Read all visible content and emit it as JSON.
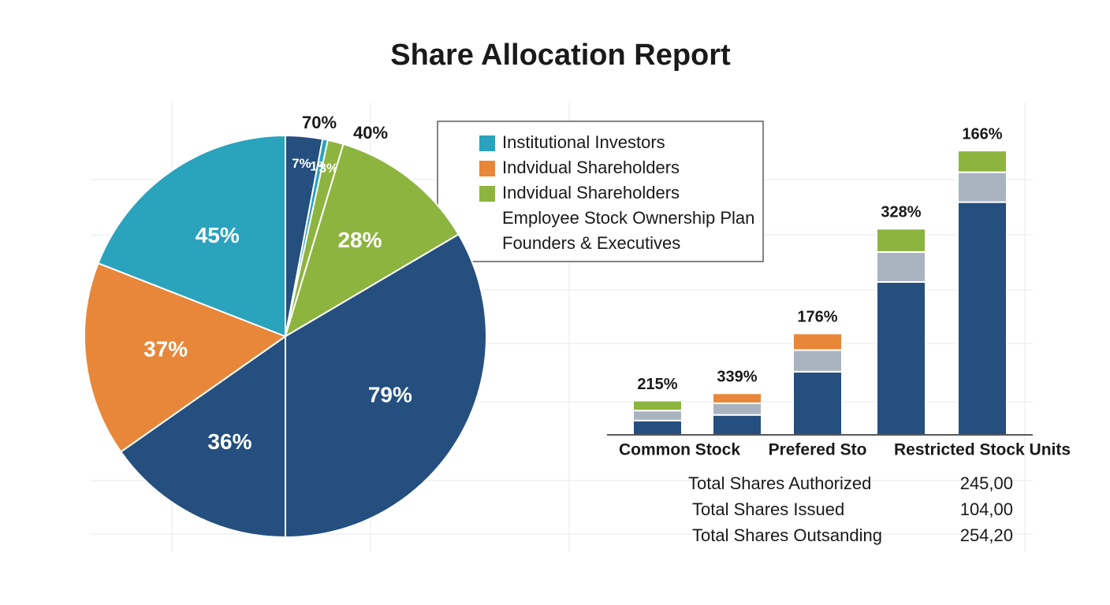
{
  "title": "Share Allocation Report",
  "chart_data": [
    {
      "type": "pie",
      "values": [
        7,
        1,
        3,
        28,
        79,
        36,
        37,
        45
      ],
      "value_labels": [
        "7%",
        "1%",
        "3%",
        "28%",
        "79%",
        "36%",
        "37%",
        "45%"
      ],
      "colors": [
        "#244f7f",
        "#2aa3bd",
        "#8db43f",
        "#8db43f",
        "#244f7f",
        "#244f7f",
        "#e8873a",
        "#2aa3bd"
      ],
      "annotations": [
        "70%",
        "40%"
      ]
    },
    {
      "type": "stacked_bar",
      "categories": [
        "Common Stock",
        null,
        "Prefered Sto",
        null,
        "Restricted Stock Units"
      ],
      "ylim": [
        0,
        100
      ],
      "series": [
        {
          "color": "#244f7f",
          "values": [
            4.3,
            6,
            19,
            46,
            70
          ]
        },
        {
          "color": "#a9b4c0",
          "values": [
            3,
            3.5,
            6.5,
            9,
            9
          ]
        },
        {
          "colors": [
            "#8db43f",
            "#e8873a",
            "#e8873a",
            "#8db43f",
            "#8db43f"
          ],
          "values": [
            3,
            3,
            5,
            7,
            6.5
          ]
        }
      ],
      "annotations": [
        "215%",
        "339%",
        "176%",
        "328%",
        "166%"
      ]
    }
  ],
  "legend": {
    "entries": [
      {
        "name": "Institutional Investors",
        "color": "#2aa3bd"
      },
      {
        "name": "Indvidual Shareholders",
        "color": "#e8873a"
      },
      {
        "name": "Indvidual Shareholders",
        "color": "#8db43f"
      },
      {
        "name": "Employee Stock Ownership Plan"
      },
      {
        "name": "Founders & Executives"
      }
    ]
  },
  "summary": {
    "rows": [
      [
        "Total Shares Authorized",
        "245,00"
      ],
      [
        "Total Shares Issued",
        "104,00"
      ],
      [
        "Total Shares Outsanding",
        "254,20"
      ]
    ]
  }
}
